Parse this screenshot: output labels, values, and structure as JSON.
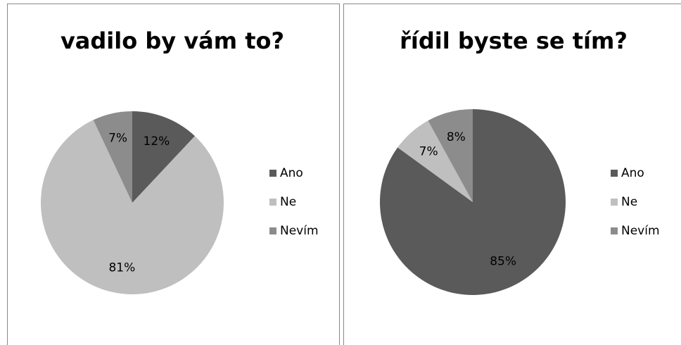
{
  "chart_data": [
    {
      "type": "pie",
      "title": "vadilo by vám to?",
      "categories": [
        "Ano",
        "Ne",
        "Nevím"
      ],
      "values": [
        12,
        81,
        7
      ],
      "value_labels": [
        "12%",
        "81%",
        "7%"
      ],
      "colors": [
        "#5a5a5a",
        "#bfbfbf",
        "#8c8c8c"
      ],
      "legend": "right"
    },
    {
      "type": "pie",
      "title": "řídil byste se tím?",
      "categories": [
        "Ano",
        "Ne",
        "Nevím"
      ],
      "values": [
        85,
        7,
        8
      ],
      "value_labels": [
        "85%",
        "7%",
        "8%"
      ],
      "colors": [
        "#5a5a5a",
        "#bfbfbf",
        "#8c8c8c"
      ],
      "legend": "right"
    }
  ]
}
